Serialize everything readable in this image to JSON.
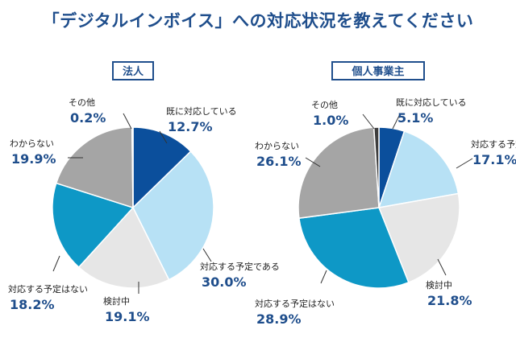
{
  "title": "「デジタルインボイス」への対応状況を教えてください",
  "colors": {
    "title": "#1f4e8c",
    "label_value": "#1f4e8c",
    "slices": [
      "#0b4f9c",
      "#b7e1f5",
      "#e6e6e6",
      "#0e98c6",
      "#a5a5a5",
      "#3d3d3d"
    ]
  },
  "chart_data": [
    {
      "type": "pie",
      "title": "法人",
      "categories": [
        "既に対応している",
        "対応する予定である",
        "検討中",
        "対応する予定はない",
        "わからない",
        "その他"
      ],
      "values": [
        12.7,
        30.0,
        19.1,
        18.2,
        19.9,
        0.2
      ],
      "value_labels": [
        "12.7%",
        "30.0%",
        "19.1%",
        "18.2%",
        "19.9%",
        "0.2%"
      ],
      "unit": "%"
    },
    {
      "type": "pie",
      "title": "個人事業主",
      "categories": [
        "既に対応している",
        "対応する予定である",
        "検討中",
        "対応する予定はない",
        "わからない",
        "その他"
      ],
      "values": [
        5.1,
        17.1,
        21.8,
        28.9,
        26.1,
        1.0
      ],
      "value_labels": [
        "5.1%",
        "17.1%",
        "21.8%",
        "28.9%",
        "26.1%",
        "1.0%"
      ],
      "unit": "%"
    }
  ]
}
